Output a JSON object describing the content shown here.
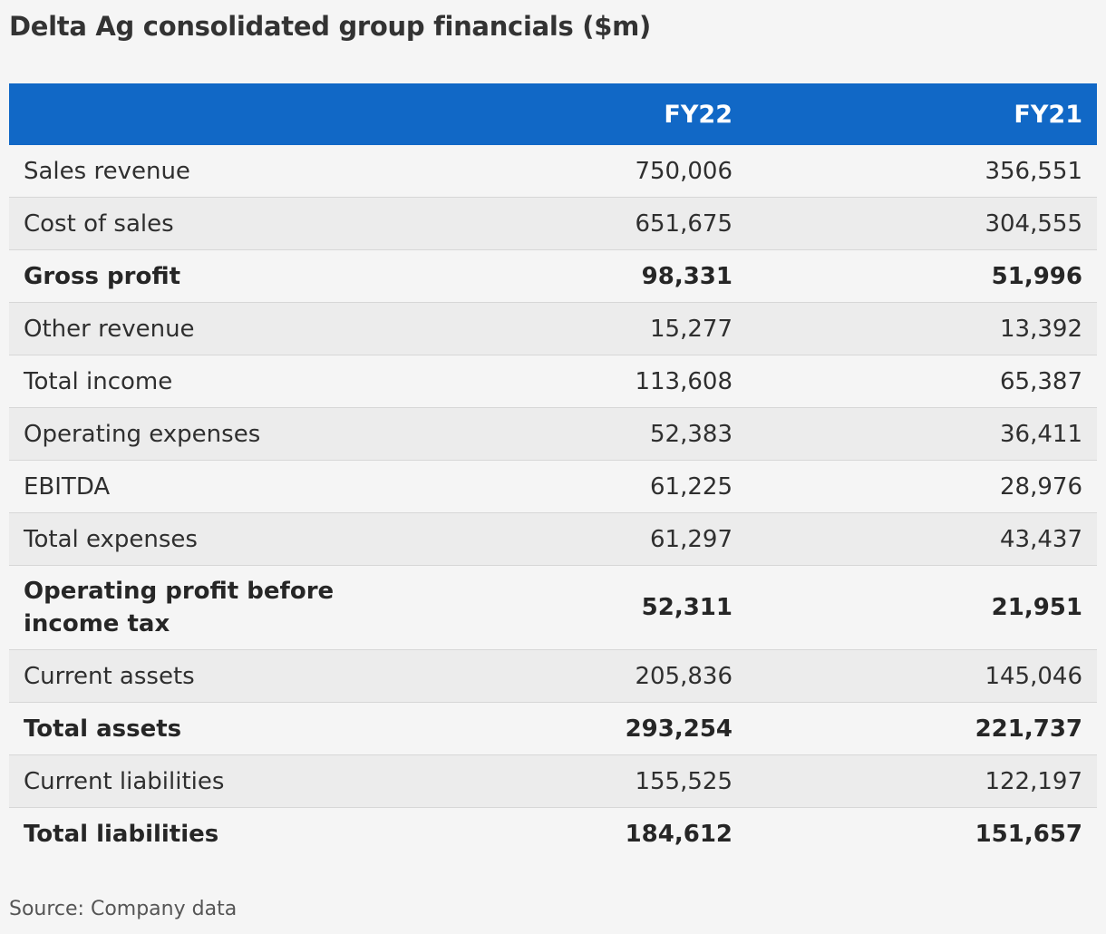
{
  "title": "Delta Ag consolidated group financials ($m)",
  "source": "Source: Company data",
  "colors": {
    "header_bg": "#1168c6",
    "header_text": "#ffffff",
    "row_odd": "#f5f5f5",
    "row_even": "#ececec"
  },
  "chart_data": {
    "type": "table",
    "title": "Delta Ag consolidated group financials ($m)",
    "columns": [
      "",
      "FY22",
      "FY21"
    ],
    "rows": [
      {
        "label": "Sales revenue",
        "fy22": "750,006",
        "fy21": "356,551",
        "bold": false
      },
      {
        "label": "Cost of sales",
        "fy22": "651,675",
        "fy21": "304,555",
        "bold": false
      },
      {
        "label": "Gross profit",
        "fy22": "98,331",
        "fy21": "51,996",
        "bold": true
      },
      {
        "label": "Other revenue",
        "fy22": "15,277",
        "fy21": "13,392",
        "bold": false
      },
      {
        "label": "Total income",
        "fy22": "113,608",
        "fy21": "65,387",
        "bold": false
      },
      {
        "label": "Operating expenses",
        "fy22": "52,383",
        "fy21": "36,411",
        "bold": false
      },
      {
        "label": "EBITDA",
        "fy22": "61,225",
        "fy21": "28,976",
        "bold": false
      },
      {
        "label": "Total expenses",
        "fy22": "61,297",
        "fy21": "43,437",
        "bold": false
      },
      {
        "label": "Operating profit before income tax",
        "fy22": "52,311",
        "fy21": "21,951",
        "bold": true
      },
      {
        "label": "Current assets",
        "fy22": "205,836",
        "fy21": "145,046",
        "bold": false
      },
      {
        "label": "Total assets",
        "fy22": "293,254",
        "fy21": "221,737",
        "bold": true
      },
      {
        "label": "Current liabilities",
        "fy22": "155,525",
        "fy21": "122,197",
        "bold": false
      },
      {
        "label": "Total liabilities",
        "fy22": "184,612",
        "fy21": "151,657",
        "bold": true
      }
    ]
  }
}
